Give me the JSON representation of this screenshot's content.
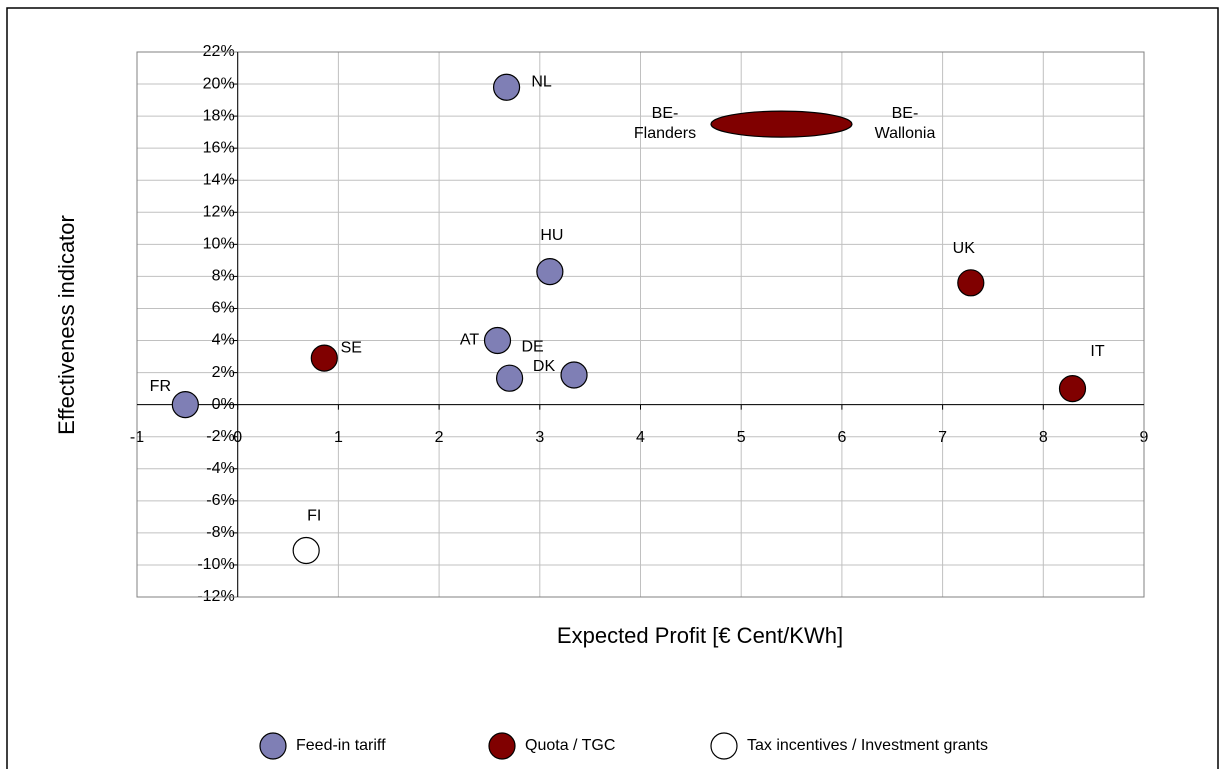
{
  "chart_data": {
    "type": "scatter",
    "x_label": "Expected Profit [€ Cent/KWh]",
    "y_label": "Effectiveness indicator",
    "xlim": [
      -1,
      9
    ],
    "xticks": [
      -1,
      0,
      1,
      2,
      3,
      4,
      5,
      6,
      7,
      8,
      9
    ],
    "ylim": [
      -12,
      22
    ],
    "yticks": [
      {
        "value": -12,
        "label": "-12%"
      },
      {
        "value": -10,
        "label": "-10%"
      },
      {
        "value": -8,
        "label": "-8%"
      },
      {
        "value": -6,
        "label": "-6%"
      },
      {
        "value": -4,
        "label": "-4%"
      },
      {
        "value": -2,
        "label": "-2%"
      },
      {
        "value": 0,
        "label": "0%"
      },
      {
        "value": 2,
        "label": "2%"
      },
      {
        "value": 4,
        "label": "4%"
      },
      {
        "value": 6,
        "label": "6%"
      },
      {
        "value": 8,
        "label": "8%"
      },
      {
        "value": 10,
        "label": "10%"
      },
      {
        "value": 12,
        "label": "12%"
      },
      {
        "value": 14,
        "label": "14%"
      },
      {
        "value": 16,
        "label": "16%"
      },
      {
        "value": 18,
        "label": "18%"
      },
      {
        "value": 20,
        "label": "20%"
      },
      {
        "value": 22,
        "label": "22%"
      }
    ],
    "grid": true,
    "legend": "bottom",
    "series": [
      {
        "name": "Feed-in tariff",
        "color": "#7f7fb5",
        "labels": [
          "NL",
          "HU",
          "AT",
          "DE",
          "DK",
          "FR"
        ],
        "x": [
          2.67,
          3.1,
          2.58,
          2.7,
          3.34,
          -0.52
        ],
        "values": [
          19.8,
          8.3,
          4.0,
          1.65,
          1.85,
          0
        ]
      },
      {
        "name": "Quota / TGC",
        "color": "#800000",
        "labels": [
          "UK",
          "IT",
          "SE",
          "BE-Flanders",
          "BE-Wallonia"
        ],
        "x": [
          7.28,
          8.29,
          0.86,
          4.7,
          6.1
        ],
        "values": [
          7.6,
          1.0,
          2.9,
          17.5,
          17.5
        ],
        "joined": [
          [
            3,
            4
          ]
        ]
      },
      {
        "name": "Tax incentives / Investment grants",
        "color": "#ffffff",
        "labels": [
          "FI"
        ],
        "x": [
          0.68
        ],
        "values": [
          -9.1
        ]
      }
    ]
  }
}
